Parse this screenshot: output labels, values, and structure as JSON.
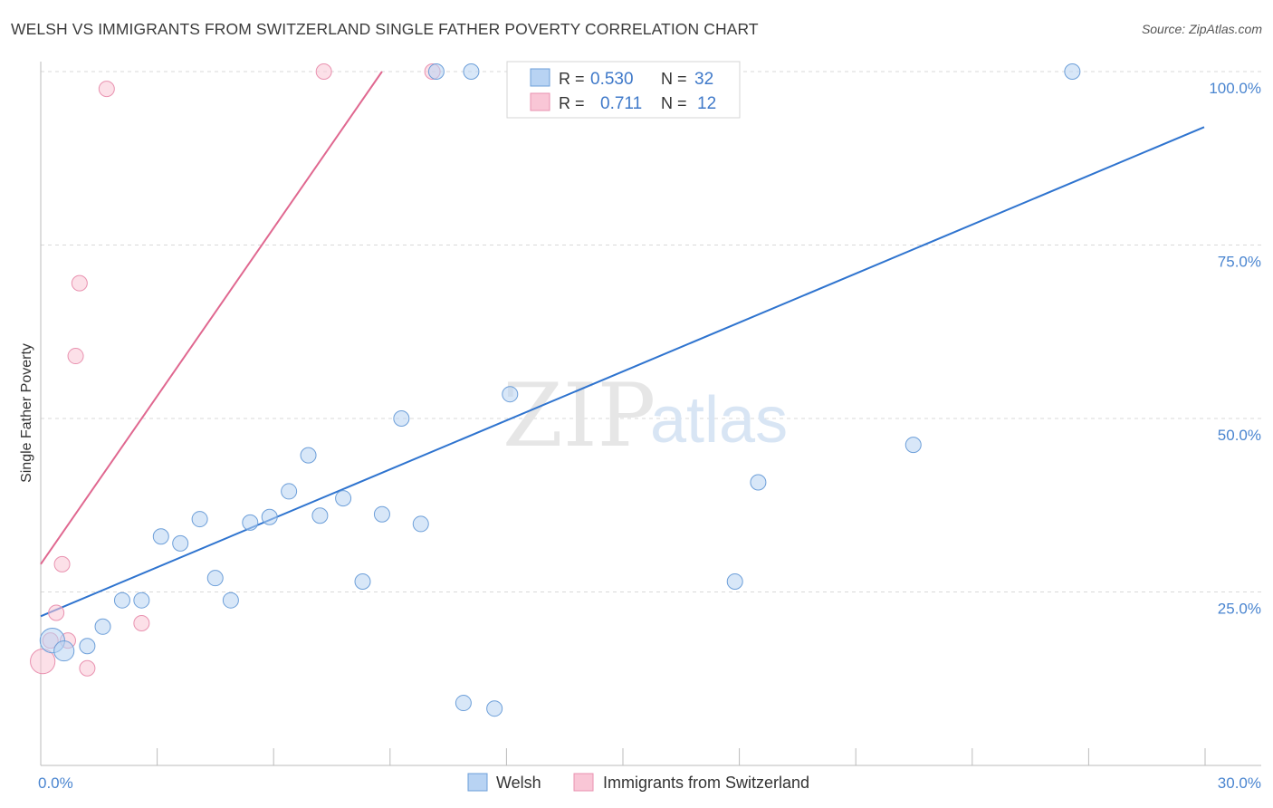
{
  "title": "WELSH VS IMMIGRANTS FROM SWITZERLAND SINGLE FATHER POVERTY CORRELATION CHART",
  "source": "Source: ZipAtlas.com",
  "watermark": {
    "zip": "ZIP",
    "atlas": "atlas"
  },
  "colors": {
    "welsh_fill": "#b8d3f3",
    "welsh_stroke": "#6d9fd9",
    "welsh_line": "#2f74cf",
    "swiss_fill": "#f9c6d6",
    "swiss_stroke": "#e992b0",
    "swiss_line": "#e06890",
    "grid": "#d9d9d9",
    "axis": "#bbbbbb"
  },
  "legend": {
    "rows": [
      {
        "r_label": "R =",
        "r_value": "0.530",
        "n_label": "N =",
        "n_value": "32"
      },
      {
        "r_label": "R =",
        "r_value": "0.711",
        "n_label": "N =",
        "n_value": "12"
      }
    ]
  },
  "chart_data": {
    "type": "scatter",
    "title": "WELSH VS IMMIGRANTS FROM SWITZERLAND SINGLE FATHER POVERTY CORRELATION CHART",
    "xlabel": "",
    "ylabel": "Single Father Poverty",
    "xlim": [
      0,
      30
    ],
    "ylim": [
      0,
      100
    ],
    "x_tick_labels": [
      {
        "value": 0,
        "label": "0.0%"
      },
      {
        "value": 30,
        "label": "30.0%"
      }
    ],
    "y_tick_labels": [
      {
        "value": 25,
        "label": "25.0%"
      },
      {
        "value": 50,
        "label": "50.0%"
      },
      {
        "value": 75,
        "label": "75.0%"
      },
      {
        "value": 100,
        "label": "100.0%"
      }
    ],
    "series": [
      {
        "name": "Welsh",
        "r": 0.53,
        "n": 32,
        "trend": [
          [
            0,
            21.5
          ],
          [
            30,
            92
          ]
        ],
        "points": [
          [
            0.3,
            18.0,
            1.6
          ],
          [
            0.6,
            16.5,
            1.3
          ],
          [
            1.2,
            17.2,
            1.0
          ],
          [
            1.6,
            20.0,
            1.0
          ],
          [
            2.1,
            23.8,
            1.0
          ],
          [
            2.6,
            23.8,
            1.0
          ],
          [
            3.1,
            33.0,
            1.0
          ],
          [
            3.6,
            32.0,
            1.0
          ],
          [
            4.1,
            35.5,
            1.0
          ],
          [
            4.5,
            27.0,
            1.0
          ],
          [
            4.9,
            23.8,
            1.0
          ],
          [
            5.4,
            35.0,
            1.0
          ],
          [
            5.9,
            35.8,
            1.0
          ],
          [
            6.4,
            39.5,
            1.0
          ],
          [
            6.9,
            44.7,
            1.0
          ],
          [
            7.2,
            36.0,
            1.0
          ],
          [
            7.8,
            38.5,
            1.0
          ],
          [
            8.3,
            26.5,
            1.0
          ],
          [
            8.8,
            36.2,
            1.0
          ],
          [
            9.3,
            50.0,
            1.0
          ],
          [
            9.8,
            34.8,
            1.0
          ],
          [
            10.2,
            100.0,
            1.0
          ],
          [
            10.9,
            9.0,
            1.0
          ],
          [
            11.1,
            100.0,
            1.0
          ],
          [
            11.7,
            8.2,
            1.0
          ],
          [
            12.1,
            53.5,
            1.0
          ],
          [
            12.4,
            100.0,
            1.0
          ],
          [
            14.1,
            100.0,
            1.0
          ],
          [
            17.9,
            26.5,
            1.0
          ],
          [
            18.5,
            40.8,
            1.0
          ],
          [
            22.5,
            46.2,
            1.0
          ],
          [
            26.6,
            100.0,
            1.0
          ]
        ]
      },
      {
        "name": "Immigrants from Switzerland",
        "r": 0.711,
        "n": 12,
        "trend": [
          [
            0,
            29
          ],
          [
            8.8,
            100
          ]
        ],
        "points": [
          [
            0.05,
            15.0,
            1.6
          ],
          [
            0.25,
            18.0,
            1.0
          ],
          [
            0.4,
            22.0,
            1.0
          ],
          [
            0.55,
            29.0,
            1.0
          ],
          [
            0.7,
            18.0,
            1.0
          ],
          [
            0.9,
            59.0,
            1.0
          ],
          [
            1.0,
            69.5,
            1.0
          ],
          [
            1.2,
            14.0,
            1.0
          ],
          [
            1.7,
            97.5,
            1.0
          ],
          [
            2.6,
            20.5,
            1.0
          ],
          [
            7.3,
            100.0,
            1.0
          ],
          [
            10.1,
            100.0,
            1.0
          ]
        ]
      }
    ]
  },
  "bottom_legend": [
    "Welsh",
    "Immigrants from Switzerland"
  ]
}
